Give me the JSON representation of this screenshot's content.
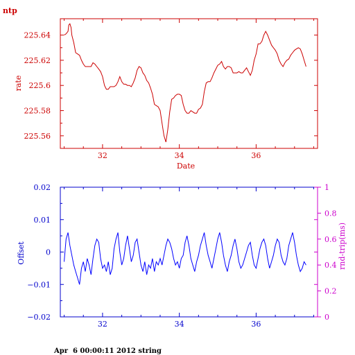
{
  "chart_data": [
    {
      "type": "line",
      "title": "ntp",
      "xlabel": "Date",
      "ylabel": "rate",
      "xlim": [
        30.9,
        37.6
      ],
      "ylim": [
        225.55,
        225.653
      ],
      "xticks": [
        32,
        34,
        36
      ],
      "yticks": [
        225.56,
        225.58,
        225.6,
        225.62,
        225.64
      ],
      "xtick_labels": [
        "32",
        "34",
        "36"
      ],
      "ytick_labels": [
        "225.56",
        "225.58",
        "225.6",
        "225.62",
        "225.64"
      ],
      "grid": false,
      "color": "#cc0000",
      "series": [
        {
          "x": [
            31.0,
            31.05,
            31.1,
            31.12,
            31.15,
            31.18,
            31.2,
            31.25,
            31.3,
            31.35,
            31.4,
            31.45,
            31.5,
            31.55,
            31.6,
            31.65,
            31.7,
            31.75,
            31.8,
            31.85,
            31.9,
            31.95,
            32.0,
            32.05,
            32.1,
            32.15,
            32.2,
            32.25,
            32.3,
            32.35,
            32.4,
            32.45,
            32.5,
            32.55,
            32.6,
            32.65,
            32.7,
            32.75,
            32.8,
            32.85,
            32.9,
            32.95,
            33.0,
            33.05,
            33.1,
            33.15,
            33.2,
            33.25,
            33.3,
            33.35,
            33.4,
            33.45,
            33.5,
            33.55,
            33.6,
            33.65,
            33.7,
            33.75,
            33.8,
            33.85,
            33.9,
            33.95,
            34.0,
            34.05,
            34.1,
            34.15,
            34.2,
            34.25,
            34.3,
            34.35,
            34.4,
            34.45,
            34.5,
            34.55,
            34.6,
            34.65,
            34.7,
            34.75,
            34.8,
            34.85,
            34.9,
            34.95,
            35.0,
            35.05,
            35.1,
            35.15,
            35.2,
            35.25,
            35.3,
            35.35,
            35.4,
            35.45,
            35.5,
            35.55,
            35.6,
            35.65,
            35.7,
            35.75,
            35.8,
            35.85,
            35.9,
            35.95,
            36.0,
            36.05,
            36.1,
            36.15,
            36.2,
            36.25,
            36.3,
            36.35,
            36.4,
            36.45,
            36.5,
            36.55,
            36.6,
            36.65,
            36.7,
            36.75,
            36.8,
            36.85,
            36.9,
            36.95,
            37.0,
            37.05,
            37.1,
            37.15,
            37.2,
            37.25,
            37.3
          ],
          "y": [
            225.64,
            225.641,
            225.643,
            225.648,
            225.649,
            225.646,
            225.64,
            225.634,
            225.626,
            225.625,
            225.624,
            225.62,
            225.617,
            225.615,
            225.615,
            225.615,
            225.615,
            225.618,
            225.617,
            225.615,
            225.613,
            225.611,
            225.607,
            225.6,
            225.597,
            225.597,
            225.599,
            225.599,
            225.599,
            225.6,
            225.603,
            225.607,
            225.603,
            225.601,
            225.601,
            225.6,
            225.6,
            225.599,
            225.602,
            225.606,
            225.612,
            225.615,
            225.614,
            225.61,
            225.608,
            225.604,
            225.602,
            225.598,
            225.593,
            225.585,
            225.584,
            225.583,
            225.58,
            225.57,
            225.56,
            225.555,
            225.565,
            225.579,
            225.589,
            225.59,
            225.592,
            225.593,
            225.593,
            225.592,
            225.585,
            225.58,
            225.578,
            225.578,
            225.58,
            225.579,
            225.578,
            225.578,
            225.581,
            225.582,
            225.585,
            225.595,
            225.602,
            225.603,
            225.603,
            225.606,
            225.61,
            225.613,
            225.616,
            225.617,
            225.619,
            225.615,
            225.613,
            225.615,
            225.615,
            225.614,
            225.61,
            225.61,
            225.61,
            225.611,
            225.61,
            225.61,
            225.612,
            225.614,
            225.611,
            225.608,
            225.612,
            225.62,
            225.625,
            225.633,
            225.633,
            225.635,
            225.64,
            225.643,
            225.64,
            225.636,
            225.632,
            225.63,
            225.628,
            225.625,
            225.62,
            225.617,
            225.615,
            225.618,
            225.62,
            225.621,
            225.624,
            225.626,
            225.628,
            225.629,
            225.63,
            225.629,
            225.625,
            225.62,
            225.615
          ]
        }
      ]
    },
    {
      "type": "line",
      "title": "",
      "xlabel": "",
      "ylabel": "Offset",
      "y2label": "rnd-trip(ms)",
      "xlim": [
        30.9,
        37.6
      ],
      "ylim": [
        -0.02,
        0.02
      ],
      "y2lim": [
        0,
        1
      ],
      "xticks": [
        32,
        34,
        36
      ],
      "yticks": [
        -0.02,
        -0.01,
        0,
        0.01,
        0.02
      ],
      "y2ticks": [
        0,
        0.2,
        0.4,
        0.6,
        0.8,
        1
      ],
      "xtick_labels": [
        "32",
        "34",
        "36"
      ],
      "ytick_labels": [
        "−0.02",
        "−0.01",
        "0",
        "0.01",
        "0.02"
      ],
      "y2tick_labels": [
        "0",
        "0.2",
        "0.4",
        "0.6",
        "0.8",
        "1"
      ],
      "grid": false,
      "color": "#0000ff",
      "axis_color": "#0000cc",
      "axis2_color": "#cc00cc",
      "series": [
        {
          "x": [
            31.0,
            31.05,
            31.1,
            31.15,
            31.2,
            31.25,
            31.3,
            31.35,
            31.4,
            31.45,
            31.5,
            31.55,
            31.6,
            31.65,
            31.7,
            31.75,
            31.8,
            31.85,
            31.9,
            31.95,
            32.0,
            32.05,
            32.1,
            32.15,
            32.2,
            32.25,
            32.3,
            32.35,
            32.4,
            32.45,
            32.5,
            32.55,
            32.6,
            32.65,
            32.7,
            32.75,
            32.8,
            32.85,
            32.9,
            32.95,
            33.0,
            33.05,
            33.1,
            33.15,
            33.2,
            33.25,
            33.3,
            33.35,
            33.4,
            33.45,
            33.5,
            33.55,
            33.6,
            33.65,
            33.7,
            33.75,
            33.8,
            33.85,
            33.9,
            33.95,
            34.0,
            34.05,
            34.1,
            34.15,
            34.2,
            34.25,
            34.3,
            34.35,
            34.4,
            34.45,
            34.5,
            34.55,
            34.6,
            34.65,
            34.7,
            34.75,
            34.8,
            34.85,
            34.9,
            34.95,
            35.0,
            35.05,
            35.1,
            35.15,
            35.2,
            35.25,
            35.3,
            35.35,
            35.4,
            35.45,
            35.5,
            35.55,
            35.6,
            35.65,
            35.7,
            35.75,
            35.8,
            35.85,
            35.9,
            35.95,
            36.0,
            36.05,
            36.1,
            36.15,
            36.2,
            36.25,
            36.3,
            36.35,
            36.4,
            36.45,
            36.5,
            36.55,
            36.6,
            36.65,
            36.7,
            36.75,
            36.8,
            36.85,
            36.9,
            36.95,
            37.0,
            37.05,
            37.1,
            37.15,
            37.2,
            37.25,
            37.3
          ],
          "y": [
            -0.003,
            0.004,
            0.006,
            0.002,
            -0.001,
            -0.004,
            -0.006,
            -0.008,
            -0.01,
            -0.005,
            -0.003,
            -0.006,
            -0.002,
            -0.004,
            -0.007,
            -0.002,
            0.002,
            0.004,
            0.003,
            -0.002,
            -0.005,
            -0.004,
            -0.006,
            -0.003,
            -0.007,
            -0.005,
            0.001,
            0.004,
            0.006,
            0.0,
            -0.004,
            -0.002,
            0.002,
            0.005,
            0.001,
            -0.003,
            -0.001,
            0.003,
            0.004,
            0.0,
            -0.004,
            -0.006,
            -0.003,
            -0.007,
            -0.004,
            -0.005,
            -0.002,
            -0.006,
            -0.003,
            -0.004,
            -0.002,
            -0.004,
            -0.001,
            0.002,
            0.004,
            0.003,
            0.001,
            -0.002,
            -0.004,
            -0.003,
            -0.005,
            -0.002,
            -0.001,
            0.003,
            0.005,
            0.002,
            -0.002,
            -0.004,
            -0.006,
            -0.003,
            -0.001,
            0.002,
            0.004,
            0.006,
            0.002,
            -0.001,
            -0.003,
            -0.005,
            -0.002,
            0.001,
            0.004,
            0.006,
            0.003,
            -0.001,
            -0.004,
            -0.006,
            -0.003,
            -0.001,
            0.002,
            0.004,
            0.001,
            -0.003,
            -0.005,
            -0.004,
            -0.002,
            0.0,
            0.002,
            0.003,
            -0.001,
            -0.004,
            -0.005,
            -0.002,
            0.001,
            0.003,
            0.004,
            0.002,
            -0.002,
            -0.005,
            -0.003,
            -0.001,
            0.002,
            0.004,
            0.003,
            -0.001,
            -0.003,
            -0.004,
            -0.002,
            0.002,
            0.004,
            0.006,
            0.003,
            -0.001,
            -0.004,
            -0.006,
            -0.005,
            -0.003,
            -0.004
          ]
        }
      ]
    }
  ],
  "footer": {
    "text": "Apr  6 00:00:11 2012 string"
  }
}
